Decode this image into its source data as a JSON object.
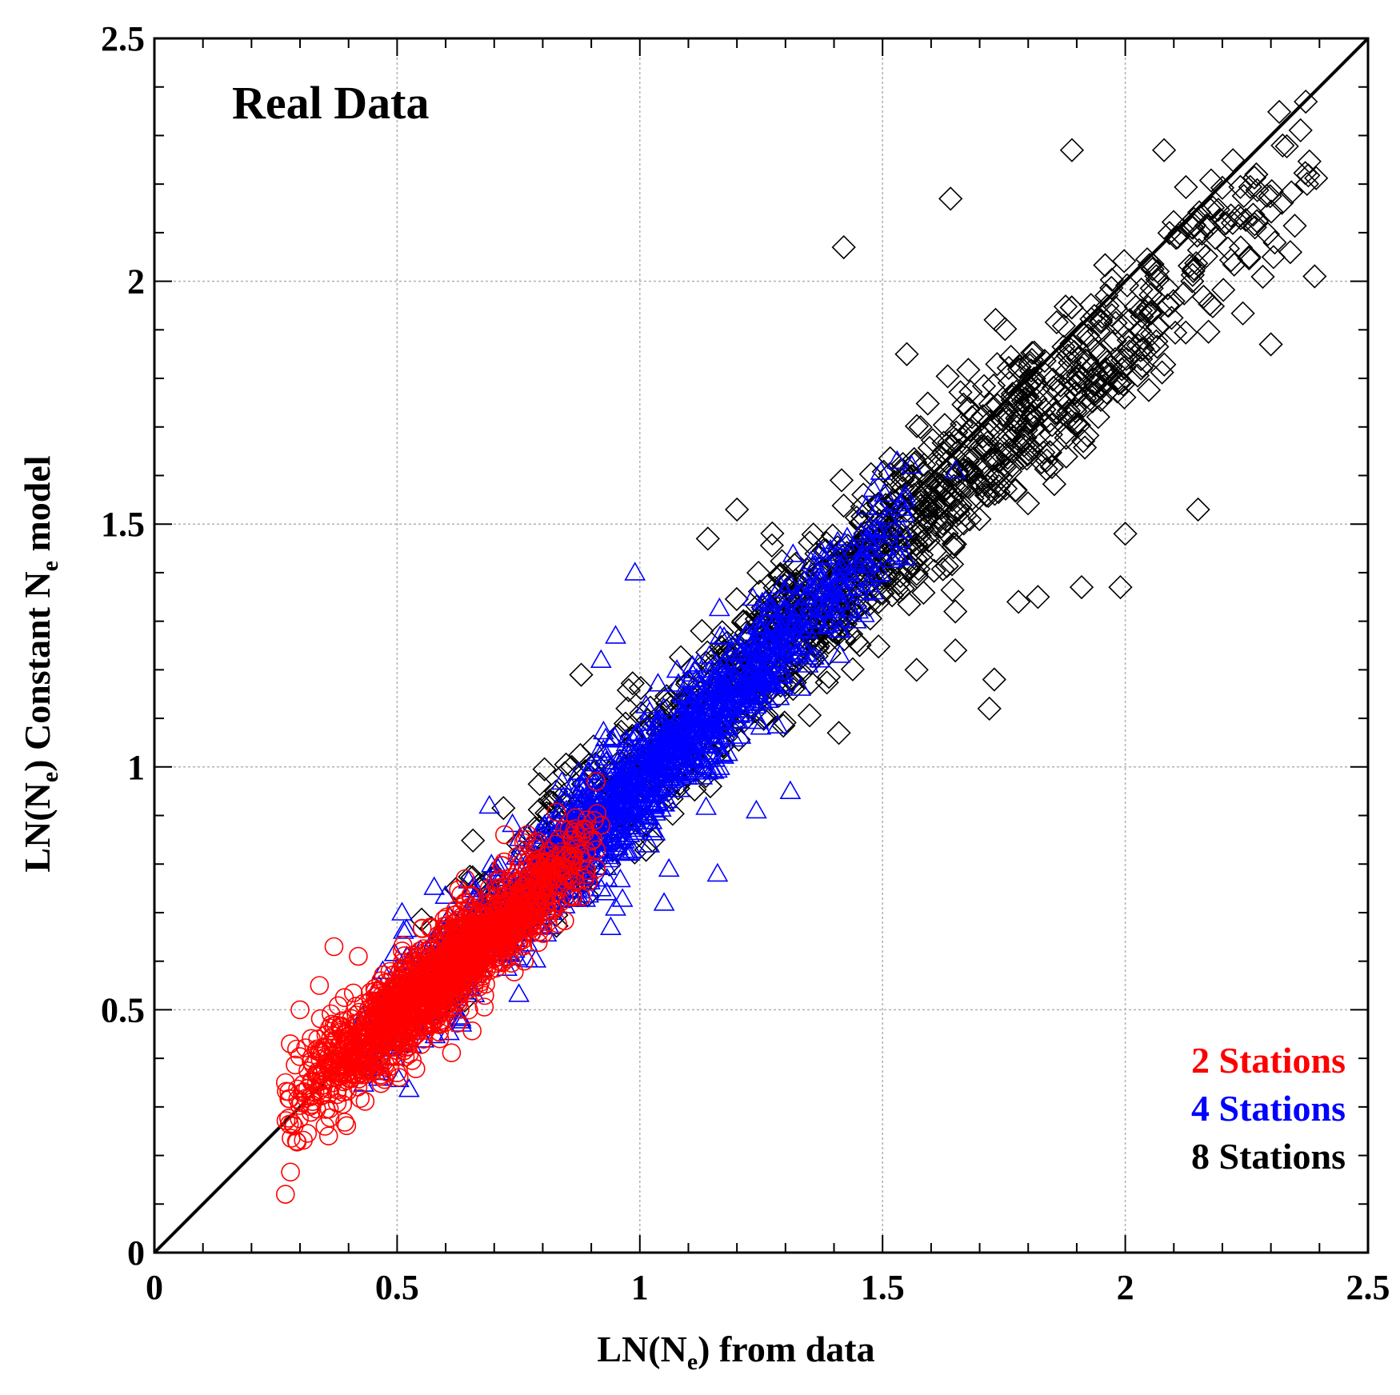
{
  "chart_data": {
    "type": "scatter",
    "title": "Real Data",
    "xlabel": "LN(N",
    "xlabel_sub": "e",
    "xlabel_suffix": ") from data",
    "ylabel": "LN(N",
    "ylabel_sub": "e",
    "ylabel_mid": ") Constant N",
    "ylabel_sub2": "e",
    "ylabel_suffix": " model",
    "xlim": [
      0,
      2.5
    ],
    "ylim": [
      0,
      2.5
    ],
    "xticks": [
      0,
      0.5,
      1,
      1.5,
      2,
      2.5
    ],
    "xtick_labels": [
      "0",
      "0.5",
      "1",
      "1.5",
      "2",
      "2.5"
    ],
    "yticks": [
      0,
      0.5,
      1,
      1.5,
      2,
      2.5
    ],
    "ytick_labels": [
      "0",
      "0.5",
      "1",
      "1.5",
      "2",
      "2.5"
    ],
    "minor_tick_step": 0.1,
    "grid": true,
    "reference_line": {
      "x": [
        0,
        2.5
      ],
      "y": [
        0,
        2.5
      ],
      "color": "#000000"
    },
    "legend_position": "bottom-right",
    "series": [
      {
        "name": "2 Stations",
        "color": "#ff0000",
        "marker": "circle",
        "n_points": 1500,
        "x_range": [
          0.27,
          0.92
        ],
        "trend_slope": 0.85,
        "trend_intercept": 0.07,
        "spread": 0.05,
        "outliers": [
          [
            0.27,
            0.12
          ],
          [
            0.28,
            0.43
          ],
          [
            0.27,
            0.35
          ],
          [
            0.3,
            0.5
          ],
          [
            0.34,
            0.55
          ],
          [
            0.37,
            0.63
          ],
          [
            0.42,
            0.61
          ],
          [
            0.5,
            0.37
          ],
          [
            0.91,
            0.97
          ],
          [
            0.92,
            0.88
          ],
          [
            0.64,
            0.77
          ]
        ]
      },
      {
        "name": "4 Stations",
        "color": "#0000ff",
        "marker": "triangle",
        "n_points": 1500,
        "x_range": [
          0.42,
          1.55
        ],
        "trend_slope": 0.96,
        "trend_intercept": 0.01,
        "spread": 0.06,
        "outliers": [
          [
            0.99,
            1.4
          ],
          [
            0.92,
            1.22
          ],
          [
            0.95,
            1.27
          ],
          [
            0.94,
            0.67
          ],
          [
            0.95,
            0.71
          ],
          [
            1.05,
            0.72
          ],
          [
            1.06,
            0.79
          ],
          [
            1.16,
            0.78
          ],
          [
            1.31,
            0.95
          ],
          [
            1.24,
            0.91
          ],
          [
            0.69,
            0.92
          ],
          [
            0.51,
            0.7
          ],
          [
            1.56,
            1.62
          ],
          [
            1.65,
            1.61
          ],
          [
            1.53,
            1.63
          ]
        ]
      },
      {
        "name": "8 Stations",
        "color": "#000000",
        "marker": "diamond",
        "n_points": 1200,
        "x_range": [
          0.55,
          2.4
        ],
        "trend_slope": 0.9,
        "trend_intercept": 0.1,
        "spread": 0.08,
        "outliers": [
          [
            1.42,
            2.07
          ],
          [
            1.64,
            2.17
          ],
          [
            1.89,
            2.27
          ],
          [
            2.08,
            2.27
          ],
          [
            2.27,
            2.22
          ],
          [
            2.39,
            2.01
          ],
          [
            2.34,
            2.06
          ],
          [
            2.15,
            1.53
          ],
          [
            2.0,
            1.48
          ],
          [
            1.99,
            1.37
          ],
          [
            1.91,
            1.37
          ],
          [
            1.65,
            1.32
          ],
          [
            1.72,
            1.12
          ],
          [
            1.41,
            1.07
          ],
          [
            1.55,
            1.85
          ],
          [
            1.2,
            1.53
          ],
          [
            1.14,
            1.47
          ],
          [
            0.86,
            1.0
          ],
          [
            0.92,
            0.92
          ],
          [
            1.82,
            1.35
          ],
          [
            1.57,
            1.2
          ],
          [
            1.73,
            1.18
          ],
          [
            1.65,
            1.24
          ],
          [
            2.3,
            1.87
          ],
          [
            1.78,
            1.34
          ]
        ]
      }
    ]
  }
}
